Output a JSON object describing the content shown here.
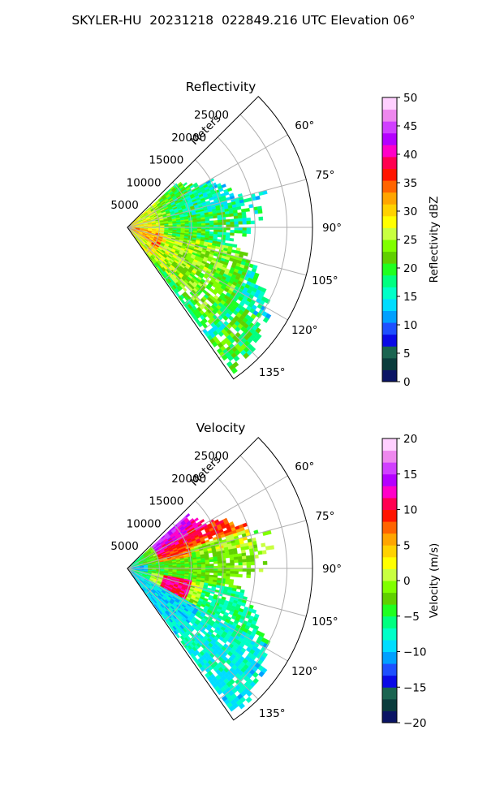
{
  "figure": {
    "suptitle": "SKYLER-HU  20231218  022849.216 UTC Elevation 06°"
  },
  "chart_data": [
    {
      "type": "heatmap",
      "projection": "polar-sector",
      "title": "Reflectivity",
      "radial_axis_label": "Meters",
      "radial_ticks": [
        "5000",
        "10000",
        "15000",
        "20000",
        "25000"
      ],
      "radial_tick_values": [
        5000,
        10000,
        15000,
        20000,
        25000
      ],
      "range_max": 29000,
      "angular_ticks": [
        "60°",
        "75°",
        "90°",
        "105°",
        "120°",
        "135°"
      ],
      "angular_tick_values": [
        60,
        75,
        90,
        105,
        120,
        135
      ],
      "azimuth_range": [
        45,
        145
      ],
      "grid": true,
      "colorbar": {
        "label": "Reflectivity dBZ",
        "range": [
          0,
          50
        ],
        "ticks": [
          "0",
          "5",
          "10",
          "15",
          "20",
          "25",
          "30",
          "35",
          "40",
          "45",
          "50"
        ],
        "tick_values": [
          0,
          5,
          10,
          15,
          20,
          25,
          30,
          35,
          40,
          45,
          50
        ],
        "colors": [
          "#0a1464",
          "#0a3c3c",
          "#1a6450",
          "#0a0ae6",
          "#1e50ff",
          "#00a0ff",
          "#00ddff",
          "#00ffc8",
          "#00ff80",
          "#20ff20",
          "#60d000",
          "#80ff00",
          "#c8ff40",
          "#ffff00",
          "#ffd200",
          "#ffa500",
          "#ff6400",
          "#ff1400",
          "#ff0050",
          "#ff00c8",
          "#b400ff",
          "#d040ff",
          "#ee88ee",
          "#ffd0ff"
        ]
      }
    },
    {
      "type": "heatmap",
      "projection": "polar-sector",
      "title": "Velocity",
      "radial_axis_label": "Meters",
      "radial_ticks": [
        "5000",
        "10000",
        "15000",
        "20000",
        "25000"
      ],
      "radial_tick_values": [
        5000,
        10000,
        15000,
        20000,
        25000
      ],
      "range_max": 29000,
      "angular_ticks": [
        "60°",
        "75°",
        "90°",
        "105°",
        "120°",
        "135°"
      ],
      "angular_tick_values": [
        60,
        75,
        90,
        105,
        120,
        135
      ],
      "azimuth_range": [
        45,
        145
      ],
      "grid": true,
      "colorbar": {
        "label": "Velocity (m/s)",
        "range": [
          -20,
          20
        ],
        "ticks": [
          "−20",
          "−15",
          "−10",
          "−5",
          "0",
          "5",
          "10",
          "15",
          "20"
        ],
        "tick_values": [
          -20,
          -15,
          -10,
          -5,
          0,
          5,
          10,
          15,
          20
        ],
        "colors": [
          "#0a1464",
          "#0a3c3c",
          "#1a6450",
          "#0a0ae6",
          "#1e50ff",
          "#00a0ff",
          "#00ddff",
          "#00ffc8",
          "#00ff80",
          "#20ff20",
          "#60d000",
          "#80ff00",
          "#c8ff40",
          "#ffff00",
          "#ffd200",
          "#ffa500",
          "#ff6400",
          "#ff1400",
          "#ff0050",
          "#ff00c8",
          "#b400ff",
          "#d040ff",
          "#ee88ee",
          "#ffd0ff"
        ]
      }
    }
  ]
}
